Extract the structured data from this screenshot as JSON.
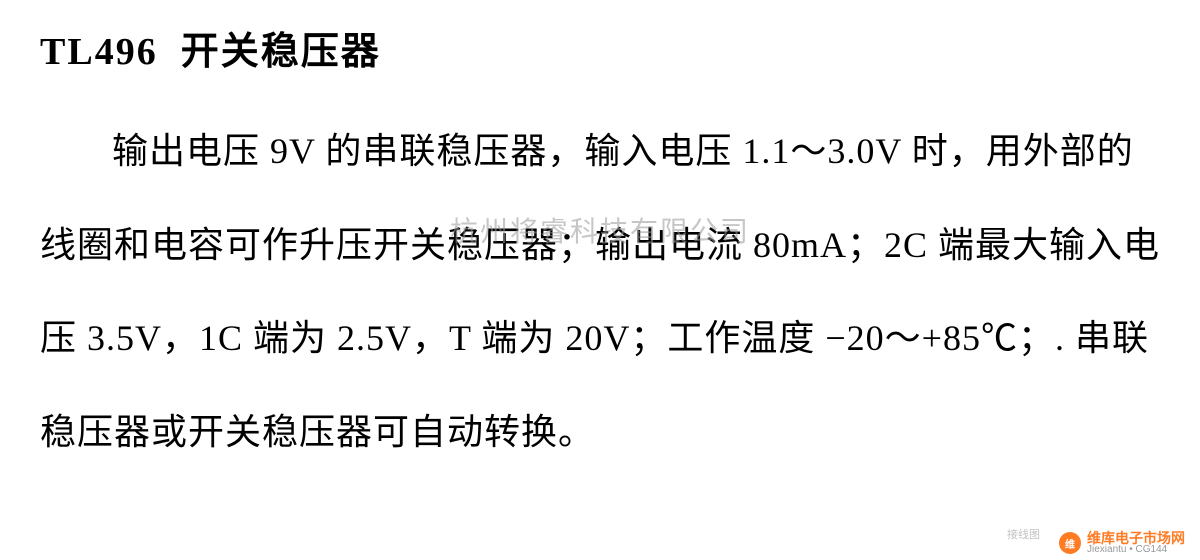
{
  "title": {
    "chip": "TL496",
    "name": "开关稳压器"
  },
  "body": "输出电压 9V 的串联稳压器，输入电压 1.1～3.0V 时，用外部的线圈和电容可作升压开关稳压器；输出电流 80mA；2C 端最大输入电压 3.5V，1C 端为 2.5V，T 端为 20V；工作温度 −20～+85℃；. 串联稳压器或开关稳压器可自动转换。",
  "watermark": {
    "center": "杭州将睿科技有限公司",
    "logo_text": "维",
    "brand1": "维库电子市场网",
    "brand2": "Jiexiantu • CG144",
    "small": "接线图"
  },
  "colors": {
    "text": "#000000",
    "background": "#ffffff",
    "watermark_gray": "#999999",
    "watermark_orange": "#ff6600"
  },
  "typography": {
    "title_fontsize": 38,
    "body_fontsize": 36,
    "line_height": 2.6,
    "font_family": "SimSun"
  }
}
